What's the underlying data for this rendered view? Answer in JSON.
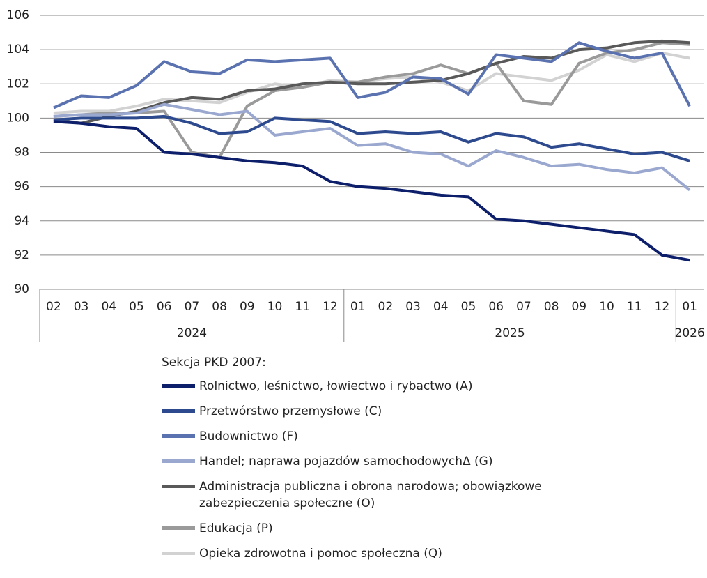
{
  "chart_data": {
    "type": "line",
    "categories": [
      "02",
      "03",
      "04",
      "05",
      "06",
      "07",
      "08",
      "09",
      "10",
      "11",
      "12",
      "01",
      "02",
      "03",
      "04",
      "05",
      "06",
      "07",
      "08",
      "09",
      "10",
      "11",
      "12",
      "01"
    ],
    "years": [
      "2024",
      "2025",
      "2026"
    ],
    "ylim": [
      90,
      106
    ],
    "yticks": [
      90,
      92,
      94,
      96,
      98,
      100,
      102,
      104,
      106
    ],
    "grid": true,
    "legend_title": "Sekcja PKD 2007:",
    "series": [
      {
        "name": "Rolnictwo, leśnictwo, łowiectwo i rybactwo (A)",
        "color": "#0d1f6b",
        "values": [
          99.8,
          99.7,
          99.5,
          99.4,
          98.0,
          97.9,
          97.7,
          97.5,
          97.4,
          97.2,
          96.3,
          96.0,
          95.9,
          95.7,
          95.5,
          95.4,
          94.1,
          94.0,
          93.8,
          93.6,
          93.4,
          93.2,
          92.0,
          91.7
        ]
      },
      {
        "name": "Przetwórstwo przemysłowe (C)",
        "color": "#2e4a8f",
        "values": [
          99.9,
          100.0,
          100.0,
          100.0,
          100.1,
          99.7,
          99.1,
          99.2,
          100.0,
          99.9,
          99.8,
          99.1,
          99.2,
          99.1,
          99.2,
          98.6,
          99.1,
          98.9,
          98.3,
          98.5,
          98.2,
          97.9,
          98.0,
          97.5
        ]
      },
      {
        "name": "Budownictwo (F)",
        "color": "#5a72b0",
        "values": [
          100.6,
          101.3,
          101.2,
          101.9,
          103.3,
          102.7,
          102.6,
          103.4,
          103.3,
          103.4,
          103.5,
          101.2,
          101.5,
          102.4,
          102.3,
          101.4,
          103.7,
          103.5,
          103.3,
          104.4,
          103.9,
          103.5,
          103.8,
          100.7
        ]
      },
      {
        "name": "Handel; naprawa pojazdów samochodowychΔ (G)",
        "color": "#9aa8d0",
        "values": [
          100.1,
          100.2,
          100.2,
          100.3,
          100.8,
          100.5,
          100.2,
          100.4,
          99.0,
          99.2,
          99.4,
          98.4,
          98.5,
          98.0,
          97.9,
          97.2,
          98.1,
          97.7,
          97.2,
          97.3,
          97.0,
          96.8,
          97.1,
          95.8
        ]
      },
      {
        "name": "Administracja publiczna i obrona narodowa; obowiązkowe zabezpieczenia społeczne (O)",
        "color": "#595959",
        "values": [
          99.9,
          99.7,
          100.1,
          100.4,
          100.9,
          101.2,
          101.1,
          101.6,
          101.7,
          102.0,
          102.1,
          102.0,
          102.0,
          102.1,
          102.2,
          102.6,
          103.2,
          103.6,
          103.5,
          104.0,
          104.1,
          104.4,
          104.5,
          104.4
        ]
      },
      {
        "name": "Edukacja (P)",
        "color": "#9a9a9a",
        "values": [
          100.1,
          100.2,
          100.3,
          100.3,
          100.4,
          98.0,
          97.7,
          100.7,
          101.6,
          101.8,
          102.1,
          102.1,
          102.4,
          102.6,
          103.1,
          102.6,
          103.2,
          101.0,
          100.8,
          103.2,
          103.8,
          104.0,
          104.4,
          104.3
        ]
      },
      {
        "name": "Opieka zdrowotna i pomoc społeczna (Q)",
        "color": "#d2d2d2",
        "values": [
          100.3,
          100.4,
          100.4,
          100.7,
          101.1,
          101.0,
          100.9,
          101.5,
          102.0,
          101.8,
          102.2,
          102.1,
          102.3,
          102.4,
          102.1,
          101.6,
          102.6,
          102.4,
          102.2,
          102.8,
          103.7,
          103.3,
          103.8,
          103.5
        ]
      }
    ]
  }
}
